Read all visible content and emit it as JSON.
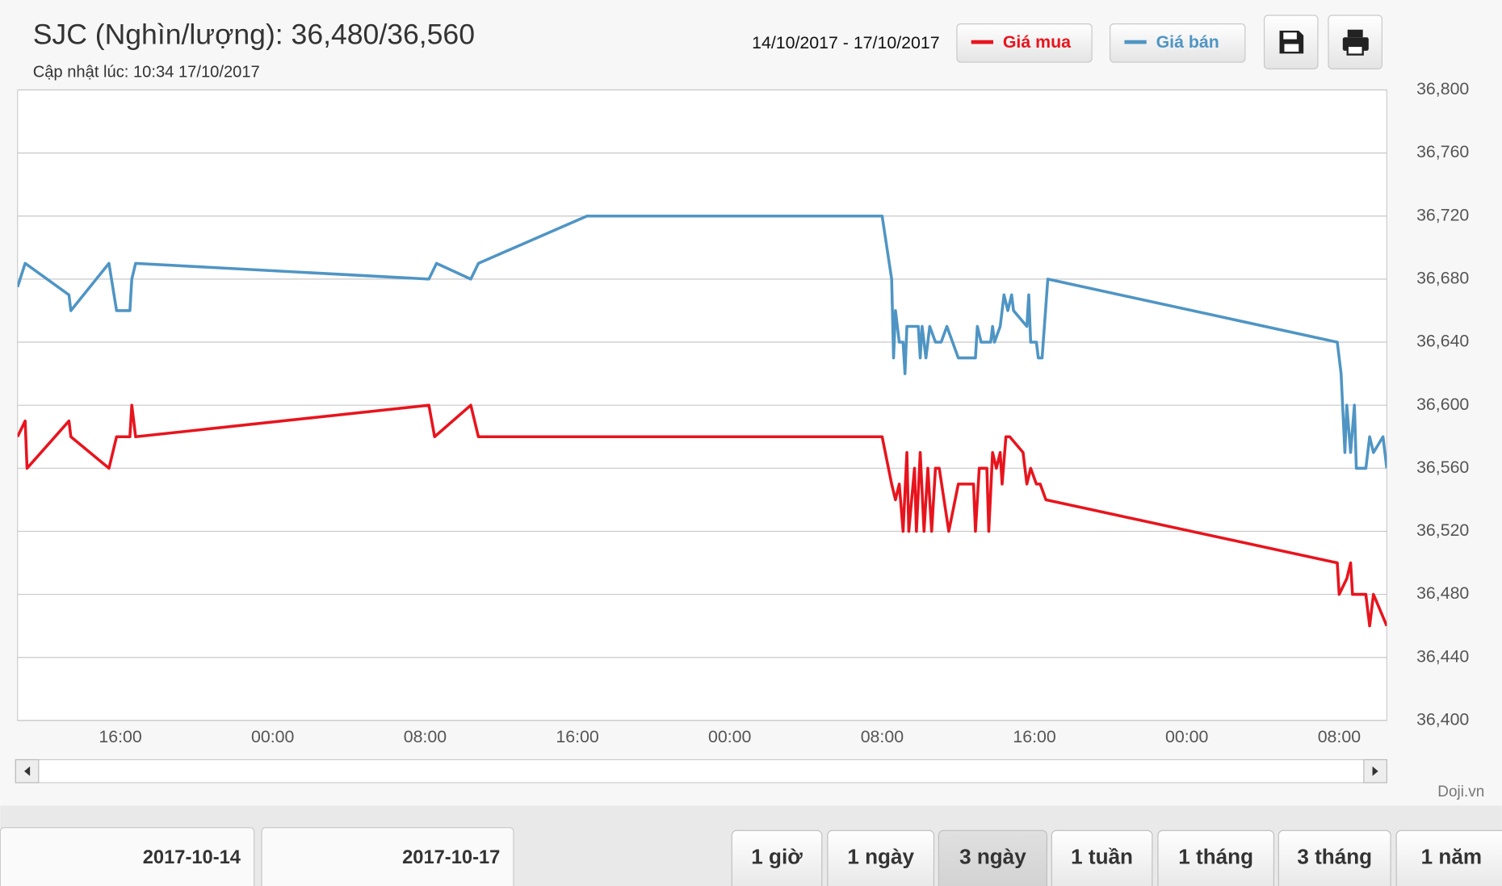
{
  "chart_data": {
    "type": "line",
    "title": "SJC (Nghìn/lượng): 36,480/36,560",
    "subtitle": "Cập nhật lúc: 10:34 17/10/2017",
    "xlim": [
      10.6,
      82.5
    ],
    "xticks": [
      {
        "value": 16,
        "label": "16:00"
      },
      {
        "value": 24,
        "label": "00:00"
      },
      {
        "value": 32,
        "label": "08:00"
      },
      {
        "value": 40,
        "label": "16:00"
      },
      {
        "value": 48,
        "label": "00:00"
      },
      {
        "value": 56,
        "label": "08:00"
      },
      {
        "value": 64,
        "label": "16:00"
      },
      {
        "value": 72,
        "label": "00:00"
      },
      {
        "value": 80,
        "label": "08:00"
      }
    ],
    "ylim": [
      36400,
      36800
    ],
    "yticks": [
      {
        "value": 36400,
        "label": "36,400"
      },
      {
        "value": 36440,
        "label": "36,440"
      },
      {
        "value": 36480,
        "label": "36,480"
      },
      {
        "value": 36520,
        "label": "36,520"
      },
      {
        "value": 36560,
        "label": "36,560"
      },
      {
        "value": 36600,
        "label": "36,600"
      },
      {
        "value": 36640,
        "label": "36,640"
      },
      {
        "value": 36680,
        "label": "36,680"
      },
      {
        "value": 36720,
        "label": "36,720"
      },
      {
        "value": 36760,
        "label": "36,760"
      },
      {
        "value": 36800,
        "label": "36,800"
      }
    ],
    "grid": true,
    "series": [
      {
        "name": "Giá mua",
        "color": "#e8141d",
        "x": [
          10.6,
          11.0,
          11.1,
          13.3,
          13.4,
          15.4,
          15.8,
          16.5,
          16.6,
          16.8,
          32.2,
          32.5,
          34.4,
          34.8,
          56.0,
          56.5,
          56.7,
          56.9,
          57.1,
          57.3,
          57.4,
          57.7,
          57.8,
          58.0,
          58.2,
          58.4,
          58.6,
          58.8,
          59.0,
          59.5,
          60.0,
          60.8,
          60.9,
          61.1,
          61.5,
          61.6,
          61.8,
          62.0,
          62.2,
          62.3,
          62.5,
          62.7,
          63.4,
          63.6,
          63.8,
          64.1,
          64.3,
          64.6,
          79.9,
          80.0,
          80.4,
          80.6,
          80.7,
          81.4,
          81.6,
          81.8,
          82.5
        ],
        "values": [
          36580,
          36590,
          36560,
          36590,
          36580,
          36560,
          36580,
          36580,
          36600,
          36580,
          36600,
          36580,
          36600,
          36580,
          36580,
          36550,
          36540,
          36550,
          36520,
          36570,
          36520,
          36560,
          36520,
          36570,
          36520,
          36560,
          36520,
          36560,
          36560,
          36520,
          36550,
          36550,
          36520,
          36560,
          36560,
          36520,
          36570,
          36560,
          36570,
          36550,
          36580,
          36580,
          36570,
          36550,
          36560,
          36550,
          36550,
          36540,
          36500,
          36480,
          36490,
          36500,
          36480,
          36480,
          36460,
          36480,
          36460
        ]
      },
      {
        "name": "Giá bán",
        "color": "#4f95c4",
        "x": [
          10.6,
          11.0,
          13.3,
          13.4,
          15.4,
          15.8,
          16.5,
          16.6,
          16.8,
          32.2,
          32.6,
          34.4,
          34.8,
          40.5,
          56.0,
          56.5,
          56.6,
          56.7,
          56.9,
          57.1,
          57.2,
          57.3,
          57.9,
          58.0,
          58.1,
          58.3,
          58.5,
          58.8,
          59.1,
          59.4,
          60.0,
          60.9,
          61.0,
          61.2,
          61.7,
          61.8,
          61.9,
          62.2,
          62.4,
          62.6,
          62.8,
          62.9,
          63.6,
          63.7,
          63.8,
          64.1,
          64.2,
          64.4,
          64.7,
          79.9,
          80.1,
          80.3,
          80.4,
          80.6,
          80.8,
          80.9,
          81.4,
          81.6,
          81.8,
          82.3,
          82.5
        ],
        "values": [
          36675,
          36690,
          36670,
          36660,
          36690,
          36660,
          36660,
          36680,
          36690,
          36680,
          36690,
          36680,
          36690,
          36720,
          36720,
          36680,
          36630,
          36660,
          36640,
          36640,
          36620,
          36650,
          36650,
          36630,
          36650,
          36630,
          36650,
          36640,
          36640,
          36650,
          36630,
          36630,
          36650,
          36640,
          36640,
          36650,
          36640,
          36650,
          36670,
          36660,
          36670,
          36660,
          36650,
          36670,
          36640,
          36640,
          36630,
          36630,
          36680,
          36640,
          36620,
          36570,
          36600,
          36570,
          36600,
          36560,
          36560,
          36580,
          36570,
          36580,
          36560
        ]
      }
    ]
  },
  "header": {
    "date_range": "14/10/2017 - 17/10/2017"
  },
  "credit": "Doji.vn",
  "date_inputs": [
    "2017-10-14",
    "2017-10-17"
  ],
  "range_buttons": [
    "1 giờ",
    "1 ngày",
    "3 ngày",
    "1 tuần",
    "1 tháng",
    "3 tháng",
    "1 năm"
  ],
  "selected_range": "3 ngày"
}
